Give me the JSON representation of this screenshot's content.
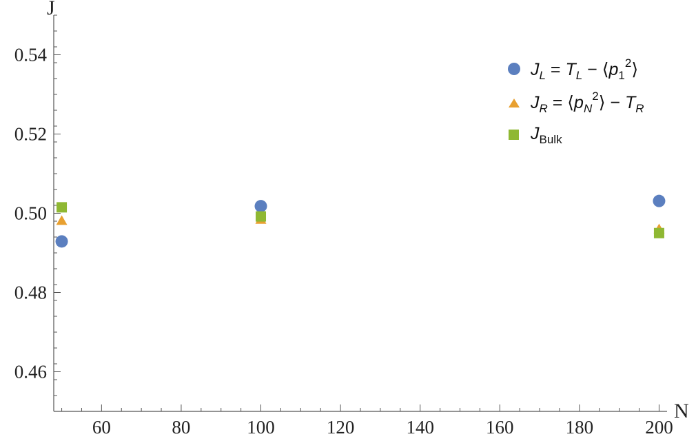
{
  "chart_data": {
    "type": "scatter",
    "xlabel": "N",
    "ylabel": "J",
    "xlim": [
      48,
      202
    ],
    "ylim": [
      0.45,
      0.55
    ],
    "xticks": [
      60,
      80,
      100,
      120,
      140,
      160,
      180,
      200
    ],
    "yticks": [
      0.46,
      0.48,
      0.5,
      0.52,
      0.54
    ],
    "ytick_labels": [
      "0.46",
      "0.48",
      "0.50",
      "0.52",
      "0.54"
    ],
    "legend_position": "top-right",
    "grid": false,
    "series": [
      {
        "name": "J_L = T_L − ⟨p_1^2⟩",
        "marker": "circle",
        "color": "#5b7fbf",
        "x": [
          50,
          100,
          200
        ],
        "y": [
          0.4929,
          0.5018,
          0.5031
        ]
      },
      {
        "name": "J_R = ⟨p_N^2⟩ − T_R",
        "marker": "triangle",
        "color": "#e8a030",
        "x": [
          50,
          100,
          200
        ],
        "y": [
          0.4981,
          0.4984,
          0.496
        ]
      },
      {
        "name": "J_Bulk",
        "marker": "square",
        "color": "#8fb833",
        "x": [
          50,
          100,
          200
        ],
        "y": [
          0.5015,
          0.4992,
          0.495
        ]
      }
    ]
  }
}
